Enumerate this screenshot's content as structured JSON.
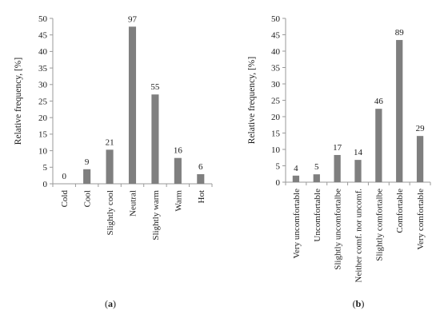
{
  "chart_data": [
    {
      "type": "bar",
      "panel_label": "(a)",
      "panel_letter": "a",
      "ylabel": "Relative frequency, [%]",
      "ylim": [
        0,
        50
      ],
      "yticks": [
        0,
        5,
        10,
        15,
        20,
        25,
        30,
        35,
        40,
        45,
        50
      ],
      "categories": [
        "Cold",
        "Cool",
        "Slightly cool",
        "Neutral",
        "Slightly warm",
        "Warm",
        "Hot"
      ],
      "values": [
        0,
        4.4,
        10.3,
        47.5,
        27.0,
        7.8,
        2.9
      ],
      "data_labels": [
        "0",
        "9",
        "21",
        "97",
        "55",
        "16",
        "6"
      ],
      "bar_color": "#7f7f7f",
      "grid": false
    },
    {
      "type": "bar",
      "panel_label": "(b)",
      "panel_letter": "b",
      "ylabel": "Relative frequency, [%]",
      "ylim": [
        0,
        50
      ],
      "yticks": [
        0,
        5,
        10,
        15,
        20,
        25,
        30,
        35,
        40,
        45,
        50
      ],
      "categories": [
        "Very uncomfortable",
        "Uncomfortable",
        "Slightly uncomfortalbe",
        "Neither comf. nor uncomf.",
        "Slightly comfortalbe",
        "Comfortable",
        "Very comfortable"
      ],
      "values": [
        2.0,
        2.4,
        8.3,
        6.8,
        22.4,
        43.4,
        14.1
      ],
      "data_labels": [
        "4",
        "5",
        "17",
        "14",
        "46",
        "89",
        "29"
      ],
      "bar_color": "#7f7f7f",
      "grid": false
    }
  ]
}
